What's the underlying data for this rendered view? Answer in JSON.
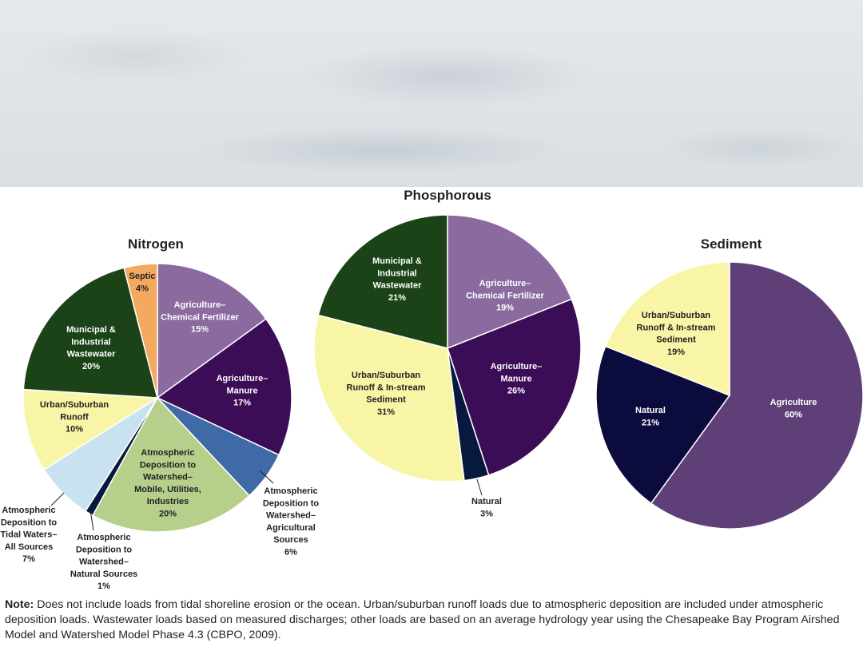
{
  "banner": {
    "description_icon": "aerial-water-photo"
  },
  "chart_data": [
    {
      "type": "pie",
      "title": "Nitrogen",
      "slices": [
        {
          "label": [
            "Agriculture–",
            "Chemical Fertilizer",
            "15%"
          ],
          "value": 15,
          "color": "#8b6a9f"
        },
        {
          "label": [
            "Agriculture–",
            "Manure",
            "17%"
          ],
          "value": 17,
          "color": "#3b0d56"
        },
        {
          "label": [
            "Atmospheric",
            "Deposition to",
            "Watershed–",
            "Agricultural",
            "Sources",
            "6%"
          ],
          "value": 6,
          "color": "#3e6aa6"
        },
        {
          "label": [
            "Atmospheric",
            "Deposition to",
            "Watershed–",
            "Mobile, Utilities,",
            "Industries",
            "20%"
          ],
          "value": 20,
          "color": "#b6d08c"
        },
        {
          "label": [
            "Atmospheric",
            "Deposition to",
            "Watershed–",
            "Natural Sources",
            "1%"
          ],
          "value": 1,
          "color": "#071a3e"
        },
        {
          "label": [
            "Atmospheric",
            "Deposition to",
            "Tidal Waters–",
            "All Sources",
            "7%"
          ],
          "value": 7,
          "color": "#c9e2f0"
        },
        {
          "label": [
            "Urban/Suburban",
            "Runoff",
            "10%"
          ],
          "value": 10,
          "color": "#f8f6a6"
        },
        {
          "label": [
            "Municipal &",
            "Industrial",
            "Wastewater",
            "20%"
          ],
          "value": 20,
          "color": "#1b4317"
        },
        {
          "label": [
            "Septic",
            "4%"
          ],
          "value": 4,
          "color": "#f4a960"
        }
      ]
    },
    {
      "type": "pie",
      "title": "Phosphorous",
      "slices": [
        {
          "label": [
            "Agriculture–",
            "Chemical Fertilizer",
            "19%"
          ],
          "value": 19,
          "color": "#8b6a9f"
        },
        {
          "label": [
            "Agriculture–",
            "Manure",
            "26%"
          ],
          "value": 26,
          "color": "#3b0d56"
        },
        {
          "label": [
            "Natural",
            "3%"
          ],
          "value": 3,
          "color": "#071a3e"
        },
        {
          "label": [
            "Urban/Suburban",
            "Runoff & In-stream",
            "Sediment",
            "31%"
          ],
          "value": 31,
          "color": "#f8f6a6"
        },
        {
          "label": [
            "Municipal &",
            "Industrial",
            "Wastewater",
            "21%"
          ],
          "value": 21,
          "color": "#1b4317"
        }
      ]
    },
    {
      "type": "pie",
      "title": "Sediment",
      "slices": [
        {
          "label": [
            "Agriculture",
            "60%"
          ],
          "value": 60,
          "color": "#5f3f78"
        },
        {
          "label": [
            "Natural",
            "21%"
          ],
          "value": 21,
          "color": "#0b0b3e"
        },
        {
          "label": [
            "Urban/Suburban",
            "Runoff & In-stream",
            "Sediment",
            "19%"
          ],
          "value": 19,
          "color": "#f8f6a6"
        }
      ]
    }
  ],
  "note": {
    "prefix": "Note:",
    "text": " Does not include loads from tidal shoreline erosion or the ocean. Urban/suburban runoff loads due to atmospheric deposition are included under atmospheric deposition loads. Wastewater loads based on measured discharges; other loads are based on an average hydrology year using the Chesapeake Bay Program Airshed Model and Watershed Model Phase 4.3 (CBPO, 2009)."
  }
}
